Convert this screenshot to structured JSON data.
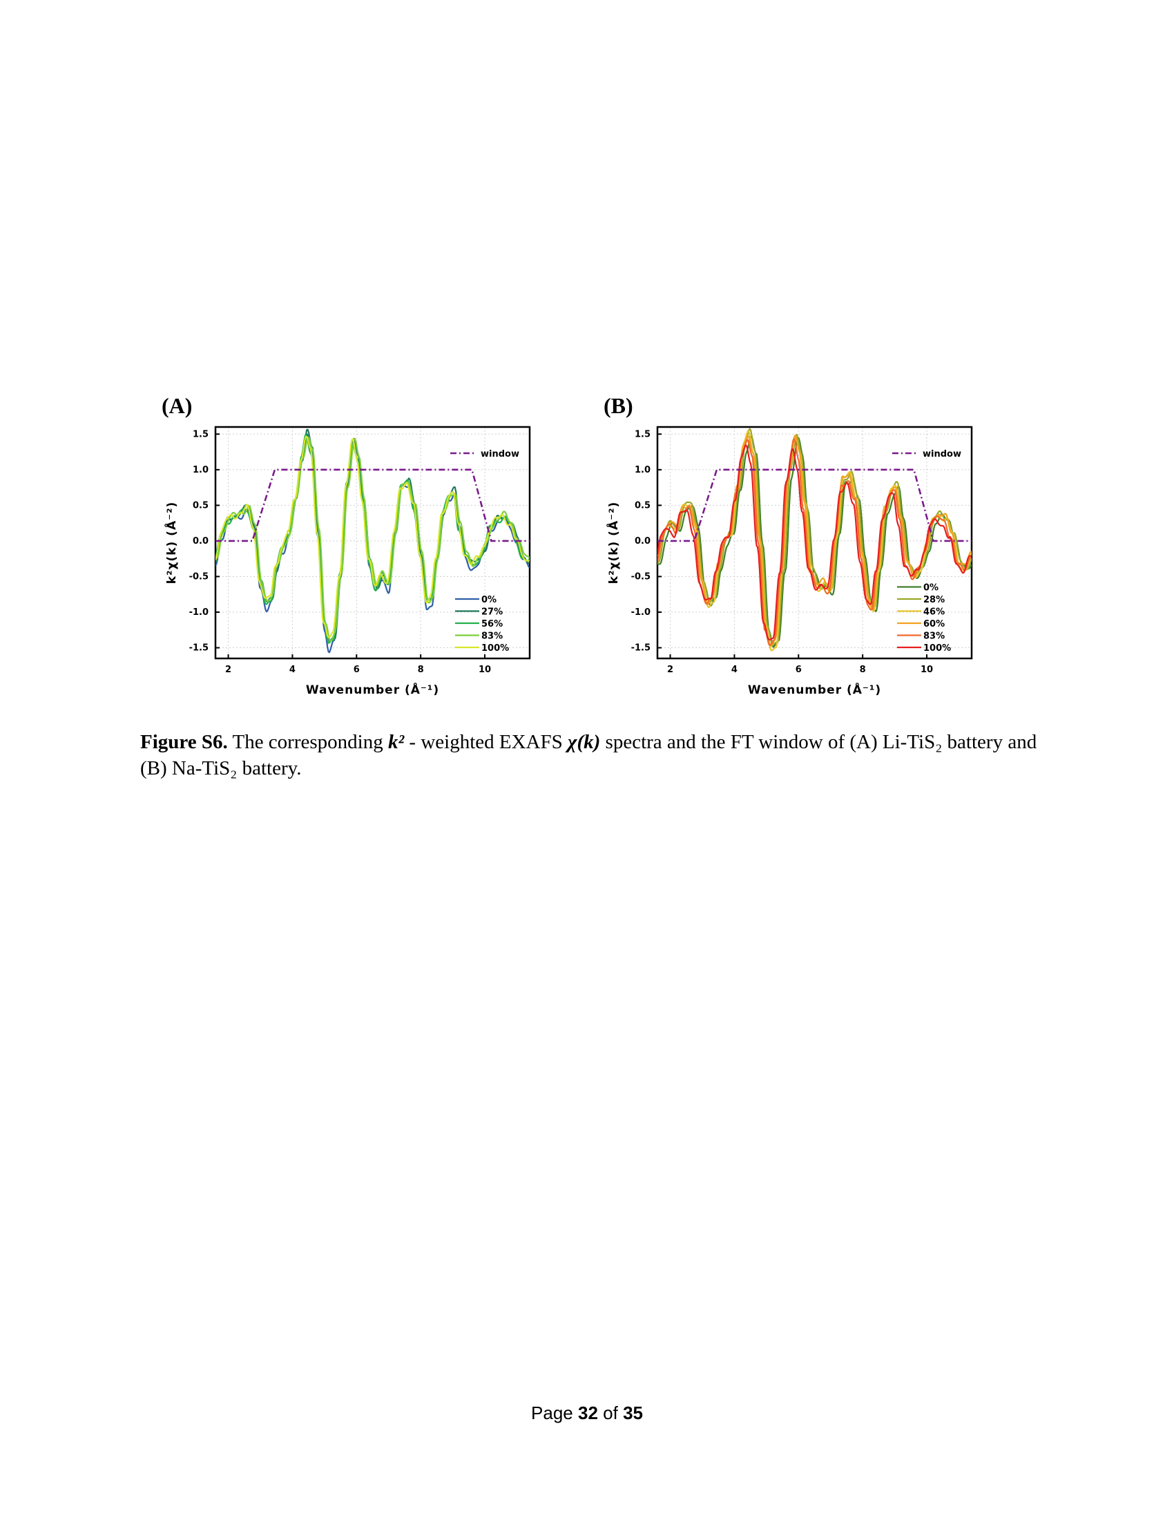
{
  "chart_data": [
    {
      "type": "line",
      "panel_label": "(A)",
      "xlabel": "Wavenumber (Å⁻¹)",
      "ylabel": "k²χ(k) (Å⁻²)",
      "xlim": [
        1.6,
        11.4
      ],
      "ylim": [
        -1.65,
        1.6
      ],
      "x_ticks": [
        "2",
        "4",
        "6",
        "8",
        "10"
      ],
      "y_ticks": [
        "1.5",
        "1.0",
        "0.5",
        "0.0",
        "-0.5",
        "-1.0",
        "-1.5"
      ],
      "grid": true,
      "window_legend_position": "top-right",
      "legend_position": "bottom-right",
      "window": {
        "name": "window",
        "color": "#7a1a8c",
        "x": [
          1.6,
          2.75,
          3.45,
          9.6,
          10.2,
          11.4
        ],
        "y": [
          0,
          0,
          1,
          1,
          0,
          0
        ]
      },
      "spectrum": {
        "x": [
          1.6,
          1.8,
          2.0,
          2.2,
          2.4,
          2.6,
          2.8,
          3.0,
          3.2,
          3.35,
          3.5,
          3.7,
          3.9,
          4.1,
          4.3,
          4.45,
          4.6,
          4.8,
          5.0,
          5.15,
          5.3,
          5.5,
          5.7,
          5.9,
          6.05,
          6.2,
          6.4,
          6.6,
          6.8,
          7.0,
          7.2,
          7.4,
          7.6,
          7.8,
          8.0,
          8.2,
          8.35,
          8.5,
          8.7,
          8.9,
          9.05,
          9.2,
          9.4,
          9.6,
          9.8,
          10.0,
          10.2,
          10.4,
          10.6,
          10.8,
          11.0,
          11.2,
          11.4
        ],
        "y": [
          -0.3,
          0.1,
          0.3,
          0.35,
          0.4,
          0.48,
          0.2,
          -0.6,
          -0.92,
          -0.85,
          -0.4,
          -0.1,
          0.1,
          0.6,
          1.2,
          1.55,
          1.3,
          0.1,
          -1.2,
          -1.5,
          -1.4,
          -0.5,
          0.8,
          1.45,
          1.2,
          0.6,
          -0.3,
          -0.7,
          -0.5,
          -0.65,
          0.1,
          0.8,
          0.85,
          0.5,
          -0.2,
          -0.9,
          -0.85,
          -0.3,
          0.4,
          0.65,
          0.7,
          0.2,
          -0.2,
          -0.35,
          -0.3,
          -0.1,
          0.2,
          0.3,
          0.35,
          0.25,
          0.0,
          -0.25,
          -0.3
        ]
      },
      "series": [
        {
          "name": "0%",
          "color": "#2f5fa8",
          "dx": 0.0,
          "dy": -0.04,
          "scale": 1.0
        },
        {
          "name": "27%",
          "color": "#1f7a5a",
          "dx": 0.02,
          "dy": 0.02,
          "scale": 0.98
        },
        {
          "name": "56%",
          "color": "#22b04b",
          "dx": -0.02,
          "dy": 0.0,
          "scale": 0.96
        },
        {
          "name": "83%",
          "color": "#7ccf3a",
          "dx": 0.03,
          "dy": 0.03,
          "scale": 0.95
        },
        {
          "name": "100%",
          "color": "#d8e62a",
          "dx": -0.03,
          "dy": 0.02,
          "scale": 0.94
        }
      ]
    },
    {
      "type": "line",
      "panel_label": "(B)",
      "xlabel": "Wavenumber (Å⁻¹)",
      "ylabel": "k²χ(k) (Å⁻²)",
      "xlim": [
        1.6,
        11.4
      ],
      "ylim": [
        -1.65,
        1.6
      ],
      "x_ticks": [
        "2",
        "4",
        "6",
        "8",
        "10"
      ],
      "y_ticks": [
        "1.5",
        "1.0",
        "0.5",
        "0.0",
        "-0.5",
        "-1.0",
        "-1.5"
      ],
      "grid": true,
      "window_legend_position": "top-right",
      "legend_position": "bottom-right",
      "window": {
        "name": "window",
        "color": "#7a1a8c",
        "x": [
          1.6,
          2.75,
          3.45,
          9.6,
          10.2,
          11.4
        ],
        "y": [
          0,
          0,
          1,
          1,
          0,
          0
        ]
      },
      "spectrum": {
        "x": [
          1.6,
          1.8,
          2.0,
          2.2,
          2.4,
          2.6,
          2.8,
          3.0,
          3.2,
          3.35,
          3.5,
          3.7,
          3.9,
          4.1,
          4.3,
          4.45,
          4.6,
          4.8,
          5.0,
          5.15,
          5.3,
          5.5,
          5.7,
          5.9,
          6.05,
          6.2,
          6.4,
          6.6,
          6.8,
          7.0,
          7.2,
          7.4,
          7.6,
          7.8,
          8.0,
          8.2,
          8.35,
          8.5,
          8.7,
          8.9,
          9.05,
          9.2,
          9.4,
          9.6,
          9.8,
          10.0,
          10.2,
          10.4,
          10.6,
          10.8,
          11.0,
          11.2,
          11.4
        ],
        "y": [
          -0.3,
          0.1,
          0.25,
          0.15,
          0.45,
          0.5,
          0.2,
          -0.6,
          -0.9,
          -0.8,
          -0.4,
          0.0,
          0.1,
          0.7,
          1.3,
          1.5,
          1.2,
          0.0,
          -1.2,
          -1.5,
          -1.4,
          -0.4,
          0.9,
          1.45,
          1.2,
          0.5,
          -0.4,
          -0.65,
          -0.6,
          -0.7,
          0.1,
          0.85,
          0.9,
          0.6,
          -0.2,
          -0.85,
          -0.95,
          -0.4,
          0.4,
          0.7,
          0.75,
          0.3,
          -0.3,
          -0.5,
          -0.4,
          -0.1,
          0.3,
          0.35,
          0.3,
          0.1,
          -0.3,
          -0.4,
          -0.2
        ]
      },
      "series": [
        {
          "name": "0%",
          "color": "#3f7f2a",
          "dx": 0.08,
          "dy": -0.02,
          "scale": 1.0
        },
        {
          "name": "28%",
          "color": "#9aa82a",
          "dx": 0.04,
          "dy": 0.02,
          "scale": 1.02
        },
        {
          "name": "46%",
          "color": "#e8c42c",
          "dx": 0.0,
          "dy": 0.0,
          "scale": 1.03
        },
        {
          "name": "60%",
          "color": "#f1a21f",
          "dx": -0.02,
          "dy": 0.03,
          "scale": 1.0
        },
        {
          "name": "83%",
          "color": "#f06a2a",
          "dx": -0.05,
          "dy": -0.03,
          "scale": 0.98
        },
        {
          "name": "100%",
          "color": "#e81e1e",
          "dx": -0.09,
          "dy": -0.05,
          "scale": 0.92
        }
      ]
    }
  ],
  "caption": {
    "label": "Figure S6.",
    "text_1": " The corresponding ",
    "math_k2": "k²",
    "text_2": " - weighted EXAFS ",
    "math_chi": "χ(k)",
    "text_3": " spectra and the FT window of (A) Li-TiS₂ battery and (B) Na-TiS₂ battery."
  },
  "footer": {
    "page_word": "Page",
    "page_num": "32",
    "of_word": "of",
    "total": "35"
  }
}
